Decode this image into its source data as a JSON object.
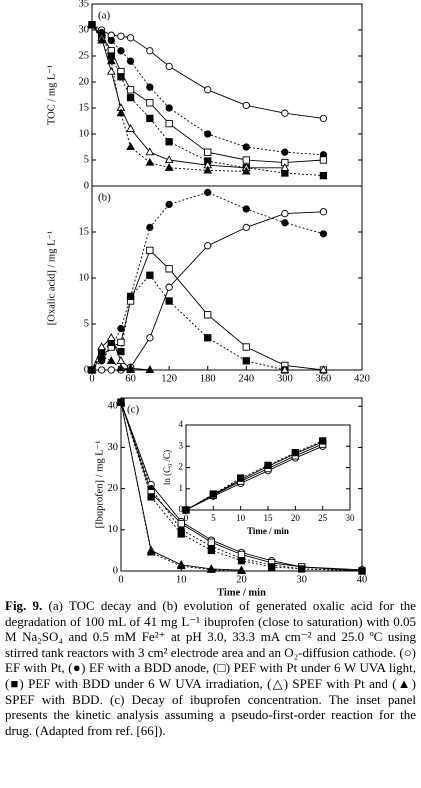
{
  "chart_data": [
    {
      "type": "line",
      "panel_label": "(a)",
      "ylabel": "TOC / mg L⁻¹",
      "x": [
        0,
        15,
        30,
        45,
        60,
        90,
        120,
        180,
        240,
        300,
        360
      ],
      "xlim": [
        0,
        420
      ],
      "ylim": [
        0,
        35
      ],
      "yticks": [
        0,
        5,
        10,
        15,
        20,
        25,
        30,
        35
      ],
      "series": [
        {
          "color": "#000000",
          "marker": "circle",
          "filled": false,
          "dash": "solid",
          "values": [
            31,
            30,
            29,
            28.8,
            28.5,
            26,
            23,
            18.5,
            15.5,
            14,
            13
          ]
        },
        {
          "color": "#000000",
          "marker": "circle",
          "filled": true,
          "dash": "dotted",
          "values": [
            31,
            29.5,
            28,
            26,
            24,
            19,
            15,
            10,
            7.5,
            6.5,
            6
          ]
        },
        {
          "color": "#000000",
          "marker": "square",
          "filled": false,
          "dash": "solid",
          "values": [
            31,
            29,
            26,
            22,
            18.5,
            16,
            12,
            6.5,
            5,
            4.5,
            5
          ]
        },
        {
          "color": "#000000",
          "marker": "square",
          "filled": true,
          "dash": "dotted",
          "values": [
            31,
            29,
            25,
            21,
            17,
            13,
            8.5,
            4.8,
            3.5,
            2.5,
            2
          ]
        },
        {
          "color": "#000000",
          "marker": "triangle",
          "filled": false,
          "dash": "solid",
          "values": [
            31,
            28.5,
            22,
            15,
            11,
            6.5,
            5,
            4,
            3.5,
            3.5,
            null
          ]
        },
        {
          "color": "#000000",
          "marker": "triangle",
          "filled": true,
          "dash": "dotted",
          "values": [
            31,
            28,
            24,
            14,
            7.5,
            4.5,
            3.5,
            3,
            2.8,
            null,
            null
          ]
        }
      ]
    },
    {
      "type": "line",
      "panel_label": "(b)",
      "ylabel": "[Oxalic acid] / mg L⁻¹",
      "x": [
        0,
        15,
        30,
        45,
        60,
        90,
        120,
        180,
        240,
        300,
        360
      ],
      "xlim": [
        0,
        420
      ],
      "xticks": [
        0,
        60,
        120,
        180,
        240,
        300,
        360,
        420
      ],
      "ylim": [
        0,
        20
      ],
      "yticks": [
        0,
        5,
        10,
        15
      ],
      "series": [
        {
          "color": "#000000",
          "marker": "circle",
          "filled": false,
          "dash": "solid",
          "values": [
            0,
            0,
            0,
            0,
            0.3,
            3.5,
            9,
            13.5,
            15.5,
            17,
            17.2
          ]
        },
        {
          "color": "#000000",
          "marker": "circle",
          "filled": true,
          "dash": "dotted",
          "values": [
            0,
            1,
            2.5,
            4.5,
            8,
            15.5,
            18,
            19.3,
            17.5,
            16,
            14.8
          ]
        },
        {
          "color": "#000000",
          "marker": "square",
          "filled": false,
          "dash": "solid",
          "values": [
            0,
            1.5,
            2.5,
            3,
            7.5,
            13,
            11,
            6,
            2.5,
            0.5,
            0
          ]
        },
        {
          "color": "#000000",
          "marker": "square",
          "filled": true,
          "dash": "dotted",
          "values": [
            0,
            2,
            3,
            2,
            8,
            10.3,
            7.5,
            3.5,
            1,
            0,
            null
          ]
        },
        {
          "color": "#000000",
          "marker": "triangle",
          "filled": false,
          "dash": "solid",
          "values": [
            0,
            2.5,
            3.5,
            1,
            0.2,
            0,
            null,
            null,
            null,
            0,
            0
          ]
        },
        {
          "color": "#000000",
          "marker": "triangle",
          "filled": true,
          "dash": "dotted",
          "values": [
            0,
            1.5,
            1,
            0.2,
            0,
            0,
            null,
            null,
            null,
            null,
            null
          ]
        }
      ]
    },
    {
      "type": "line",
      "panel_label": "(c)",
      "ylabel": "[Ibuprofen] / mg L⁻¹",
      "xlabel": "Time / min",
      "x": [
        0,
        5,
        10,
        15,
        20,
        25,
        30,
        40
      ],
      "xlim": [
        0,
        40
      ],
      "xticks": [
        0,
        10,
        20,
        30,
        40
      ],
      "ylim": [
        0,
        42
      ],
      "yticks": [
        0,
        10,
        20,
        30,
        40
      ],
      "series": [
        {
          "color": "#000000",
          "marker": "circle",
          "filled": false,
          "dash": "solid",
          "values": [
            41,
            21,
            12,
            7.5,
            4.5,
            2.5,
            1,
            0.3
          ]
        },
        {
          "color": "#000000",
          "marker": "circle",
          "filled": true,
          "dash": "dotted",
          "values": [
            41,
            20,
            10,
            6,
            3,
            1.5,
            0.5,
            0
          ]
        },
        {
          "color": "#000000",
          "marker": "square",
          "filled": false,
          "dash": "solid",
          "values": [
            41,
            19,
            11.5,
            7,
            4,
            2,
            1,
            0
          ]
        },
        {
          "color": "#000000",
          "marker": "square",
          "filled": true,
          "dash": "dotted",
          "values": [
            41,
            18,
            9,
            5,
            2.5,
            1,
            0.5,
            0
          ]
        },
        {
          "color": "#000000",
          "marker": "triangle",
          "filled": false,
          "dash": "solid",
          "values": [
            41,
            5,
            1.5,
            0.5,
            0.2,
            null,
            null,
            null
          ]
        },
        {
          "color": "#000000",
          "marker": "triangle",
          "filled": true,
          "dash": "dotted",
          "values": [
            41,
            4.5,
            1.2,
            0.3,
            0,
            null,
            null,
            null
          ]
        }
      ]
    },
    {
      "type": "line",
      "ylabel": "ln (C₀ /C)",
      "xlabel": "Time / min",
      "x": [
        0,
        5,
        10,
        15,
        20,
        25
      ],
      "xlim": [
        0,
        30
      ],
      "xticks": [
        0,
        5,
        10,
        15,
        20,
        25,
        30
      ],
      "ylim": [
        0,
        4
      ],
      "yticks": [
        0,
        1,
        2,
        3,
        4
      ],
      "series": [
        {
          "color": "#000000",
          "marker": "circle",
          "filled": false,
          "dash": "solid",
          "values": [
            0,
            0.65,
            1.25,
            1.85,
            2.45,
            3.0
          ]
        },
        {
          "color": "#000000",
          "marker": "circle",
          "filled": true,
          "dash": "solid",
          "values": [
            0,
            0.72,
            1.42,
            2.05,
            2.65,
            3.2
          ]
        },
        {
          "color": "#000000",
          "marker": "square",
          "filled": false,
          "dash": "solid",
          "values": [
            0,
            0.7,
            1.35,
            1.95,
            2.55,
            3.1
          ]
        },
        {
          "color": "#000000",
          "marker": "square",
          "filled": true,
          "dash": "dotted",
          "values": [
            0,
            0.75,
            1.5,
            2.1,
            2.7,
            3.25
          ]
        }
      ]
    }
  ],
  "caption": {
    "label": "Fig. 9.",
    "text": "(a) TOC decay and (b) evolution of generated oxalic acid for the degradation of 100 mL of 41 mg L⁻¹ ibuprofen (close to saturation) with 0.05 M Na₂SO₄ and 0.5 mM Fe²⁺ at pH 3.0, 33.3 mA cm⁻² and 25.0 ºC using stirred tank reactors with 3 cm² electrode area and an O₂-diffusion cathode. (○) EF with Pt, (●) EF with a BDD anode, (□) PEF with Pt under 6 W UVA light, (■) PEF with BDD under 6 W UVA irradiation, (△) SPEF with Pt and (▲) SPEF with BDD. (c) Decay of ibuprofen concentration. The inset panel presents the kinetic analysis assuming a pseudo-first-order reaction for the drug. (Adapted from ref. [66])."
  }
}
